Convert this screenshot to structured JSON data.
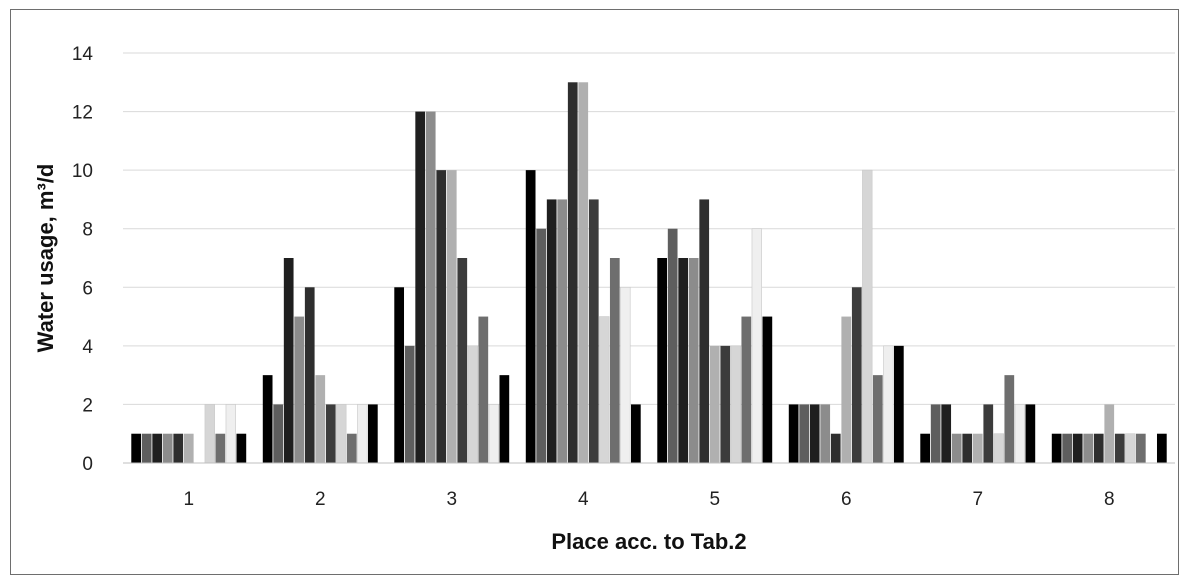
{
  "chart_data": {
    "type": "bar",
    "title": "",
    "xlabel": "Place acc. to Tab.2",
    "ylabel": "Water usage, m³/d",
    "ylim": [
      0,
      14
    ],
    "yticks": [
      0,
      2,
      4,
      6,
      8,
      10,
      12,
      14
    ],
    "grid": true,
    "legend": "none",
    "categories": [
      "1",
      "2",
      "3",
      "4",
      "5",
      "6",
      "7",
      "8"
    ],
    "series": [
      {
        "color": "#000000",
        "values": [
          1,
          3,
          6,
          10,
          7,
          2,
          1,
          1
        ]
      },
      {
        "color": "#5e5e5e",
        "values": [
          1,
          2,
          4,
          8,
          8,
          2,
          2,
          1
        ]
      },
      {
        "color": "#1f1f1f",
        "values": [
          1,
          7,
          12,
          9,
          7,
          2,
          2,
          1
        ]
      },
      {
        "color": "#8c8c8c",
        "values": [
          1,
          5,
          12,
          9,
          7,
          2,
          1,
          1
        ]
      },
      {
        "color": "#2e2e2e",
        "values": [
          1,
          6,
          10,
          13,
          9,
          1,
          1,
          1
        ]
      },
      {
        "color": "#b0b0b0",
        "values": [
          1,
          3,
          10,
          13,
          4,
          5,
          1,
          2
        ]
      },
      {
        "color": "#3c3c3c",
        "values": [
          0,
          2,
          7,
          9,
          4,
          6,
          2,
          1
        ]
      },
      {
        "color": "#d6d6d6",
        "values": [
          2,
          2,
          4,
          5,
          4,
          10,
          1,
          1
        ]
      },
      {
        "color": "#6e6e6e",
        "values": [
          1,
          1,
          5,
          7,
          5,
          3,
          3,
          1
        ]
      },
      {
        "color": "#efefef",
        "values": [
          2,
          2,
          2,
          6,
          8,
          4,
          2,
          0
        ]
      },
      {
        "color": "#000000",
        "values": [
          1,
          2,
          3,
          2,
          5,
          4,
          2,
          1
        ]
      }
    ]
  }
}
